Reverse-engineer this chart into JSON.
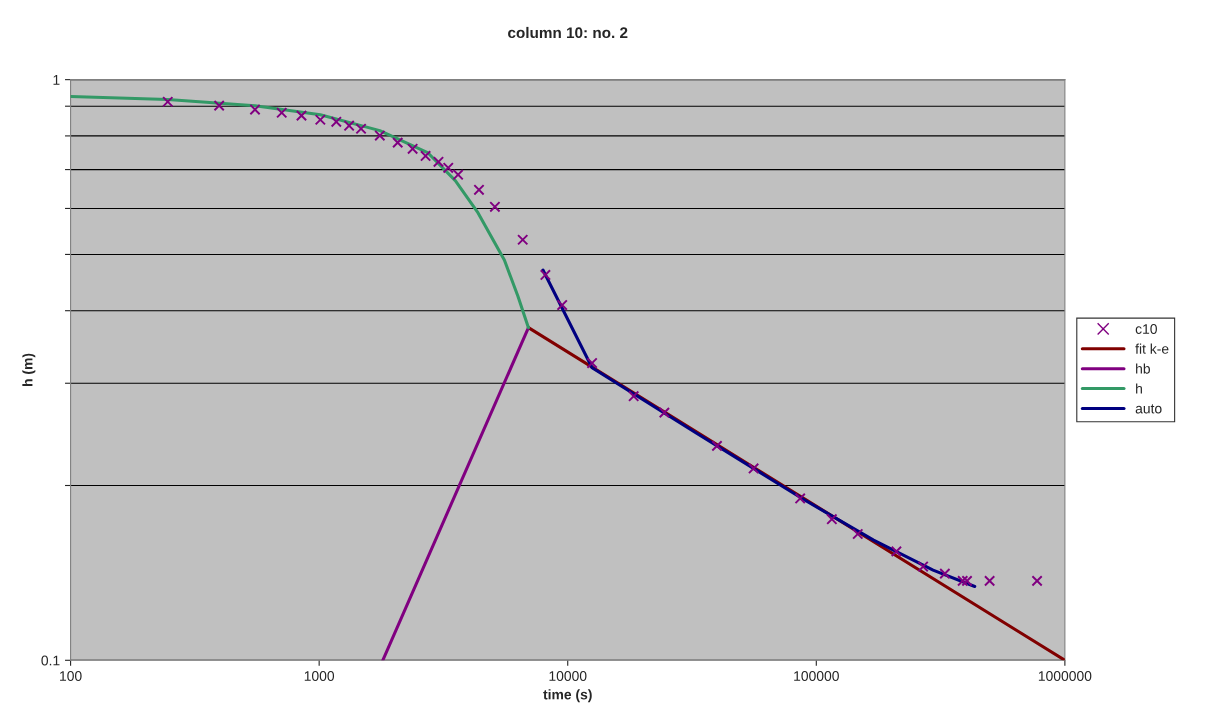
{
  "chart_data": {
    "type": "line",
    "title": "column 10: no. 2",
    "xlabel": "time (s)",
    "ylabel": "h (m)",
    "log": "xy",
    "xlim": [
      100,
      1000000
    ],
    "xticks": [
      100,
      1000,
      10000,
      100000,
      1000000
    ],
    "ylim": [
      0.1,
      1
    ],
    "yticks": [
      0.1,
      {
        "value": 0.2,
        "label": null
      },
      {
        "value": 0.3,
        "label": null
      },
      {
        "value": 0.4,
        "label": null
      },
      {
        "value": 0.5,
        "label": null
      },
      {
        "value": 0.6,
        "label": null
      },
      {
        "value": 0.7,
        "label": null
      },
      {
        "value": 0.8,
        "label": null
      },
      {
        "value": 0.9,
        "label": null
      },
      1
    ],
    "grid": "y",
    "legend": "right",
    "series": [
      {
        "name": "c10",
        "type": "scatter",
        "marker": "cross",
        "color": "#800080",
        "x": [
          246,
          396,
          552,
          707,
          849,
          1011,
          1172,
          1320,
          1474,
          1754,
          2070,
          2377,
          2680,
          3020,
          3306,
          3622,
          4395,
          5093,
          6590,
          8130,
          9500,
          12530,
          18420,
          24480,
          39850,
          55950,
          86120,
          115500,
          146800,
          210000,
          269000,
          329000,
          388000,
          404000,
          498000,
          773000
        ],
        "values": [
          0.916,
          0.902,
          0.888,
          0.877,
          0.867,
          0.853,
          0.846,
          0.833,
          0.823,
          0.801,
          0.779,
          0.76,
          0.739,
          0.722,
          0.705,
          0.686,
          0.646,
          0.604,
          0.53,
          0.461,
          0.409,
          0.325,
          0.285,
          0.267,
          0.234,
          0.214,
          0.19,
          0.175,
          0.165,
          0.154,
          0.145,
          0.141,
          0.137,
          0.137,
          0.137,
          0.137
        ]
      },
      {
        "name": "fit k-e",
        "color": "#800000",
        "x": [
          6950,
          1000000
        ],
        "values": [
          0.374,
          0.1
        ]
      },
      {
        "name": "hb",
        "color": "#800080",
        "x": [
          1803,
          6950
        ],
        "values": [
          0.1,
          0.374
        ]
      },
      {
        "name": "h",
        "color": "#339966",
        "x": [
          100,
          246,
          552,
          1011,
          1754,
          2730,
          3530,
          4330,
          5560,
          6300,
          6950
        ],
        "values": [
          0.935,
          0.924,
          0.902,
          0.87,
          0.817,
          0.749,
          0.67,
          0.592,
          0.489,
          0.424,
          0.374
        ]
      },
      {
        "name": "auto",
        "color": "#000080",
        "x": [
          7950,
          12530,
          32500,
          89400,
          170000,
          295000,
          434000
        ],
        "values": [
          0.47,
          0.319,
          0.247,
          0.189,
          0.161,
          0.143,
          0.134
        ]
      }
    ]
  }
}
